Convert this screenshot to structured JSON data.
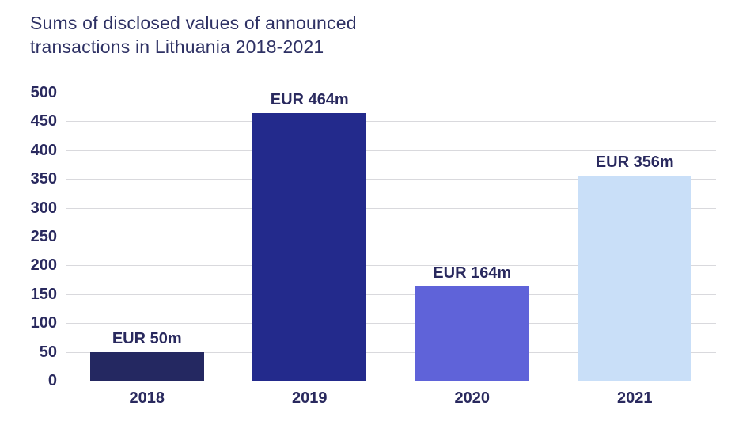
{
  "title_lines": [
    "Sums of disclosed values of announced",
    "transactions in Lithuania 2018-2021"
  ],
  "chart_data": {
    "type": "bar",
    "title": "Sums of disclosed values of announced transactions in Lithuania 2018-2021",
    "categories": [
      "2018",
      "2019",
      "2020",
      "2021"
    ],
    "values": [
      50,
      464,
      164,
      356
    ],
    "bar_labels": [
      "EUR 50m",
      "EUR 464m",
      "EUR 164m",
      "EUR 356m"
    ],
    "bar_colors": [
      "#242861",
      "#232a8c",
      "#5f63d9",
      "#c9dff8"
    ],
    "xlabel": "",
    "ylabel": "",
    "ylim": [
      0,
      500
    ],
    "yticks": [
      0,
      50,
      100,
      150,
      200,
      250,
      300,
      350,
      400,
      450,
      500
    ],
    "grid": true,
    "legend": false,
    "colors": {
      "title_text": "#2e3164",
      "label_text": "#29295e",
      "gridline": "#d9d9dd",
      "background": "#ffffff"
    }
  }
}
